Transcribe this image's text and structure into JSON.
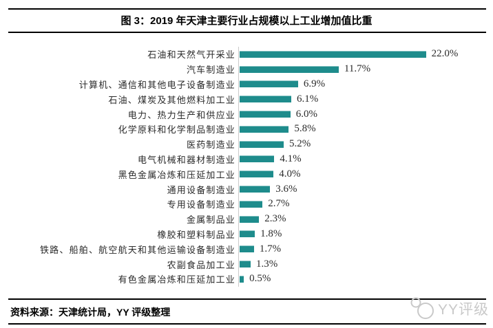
{
  "header": {
    "title": "图 3：2019 年天津主要行业占规模以上工业增加值比重"
  },
  "chart_data": {
    "type": "bar",
    "orientation": "horizontal",
    "title": "图 3：2019 年天津主要行业占规模以上工业增加值比重",
    "categories": [
      "石油和天然气开采业",
      "汽车制造业",
      "计算机、通信和其他电子设备制造业",
      "石油、煤炭及其他燃料加工业",
      "电力、热力生产和供应业",
      "化学原料和化学制品制造业",
      "医药制造业",
      "电气机械和器材制造业",
      "黑色金属冶炼和压延加工业",
      "通用设备制造业",
      "专用设备制造业",
      "金属制品业",
      "橡胶和塑料制品业",
      "铁路、船舶、航空航天和其他运输设备制造业",
      "农副食品加工业",
      "有色金属冶炼和压延加工业"
    ],
    "values": [
      22.0,
      11.7,
      6.9,
      6.1,
      6.0,
      5.8,
      5.2,
      4.1,
      4.0,
      3.6,
      2.7,
      2.3,
      1.8,
      1.7,
      1.3,
      0.5
    ],
    "value_labels": [
      "22.0%",
      "11.7%",
      "6.9%",
      "6.1%",
      "6.0%",
      "5.8%",
      "5.2%",
      "4.1%",
      "4.0%",
      "3.6%",
      "2.7%",
      "2.3%",
      "1.8%",
      "1.7%",
      "1.3%",
      "0.5%"
    ],
    "xlim": [
      0,
      24
    ],
    "grid": false,
    "legend": false,
    "bar_color": "#1e8c8c",
    "axis_line_color": "#c9c9c9",
    "value_label_position": "end"
  },
  "footer": {
    "source": "资料来源：天津统计局，YY 评级整理"
  },
  "watermark": {
    "text": "YY评级",
    "color": "#c9c9c9"
  }
}
